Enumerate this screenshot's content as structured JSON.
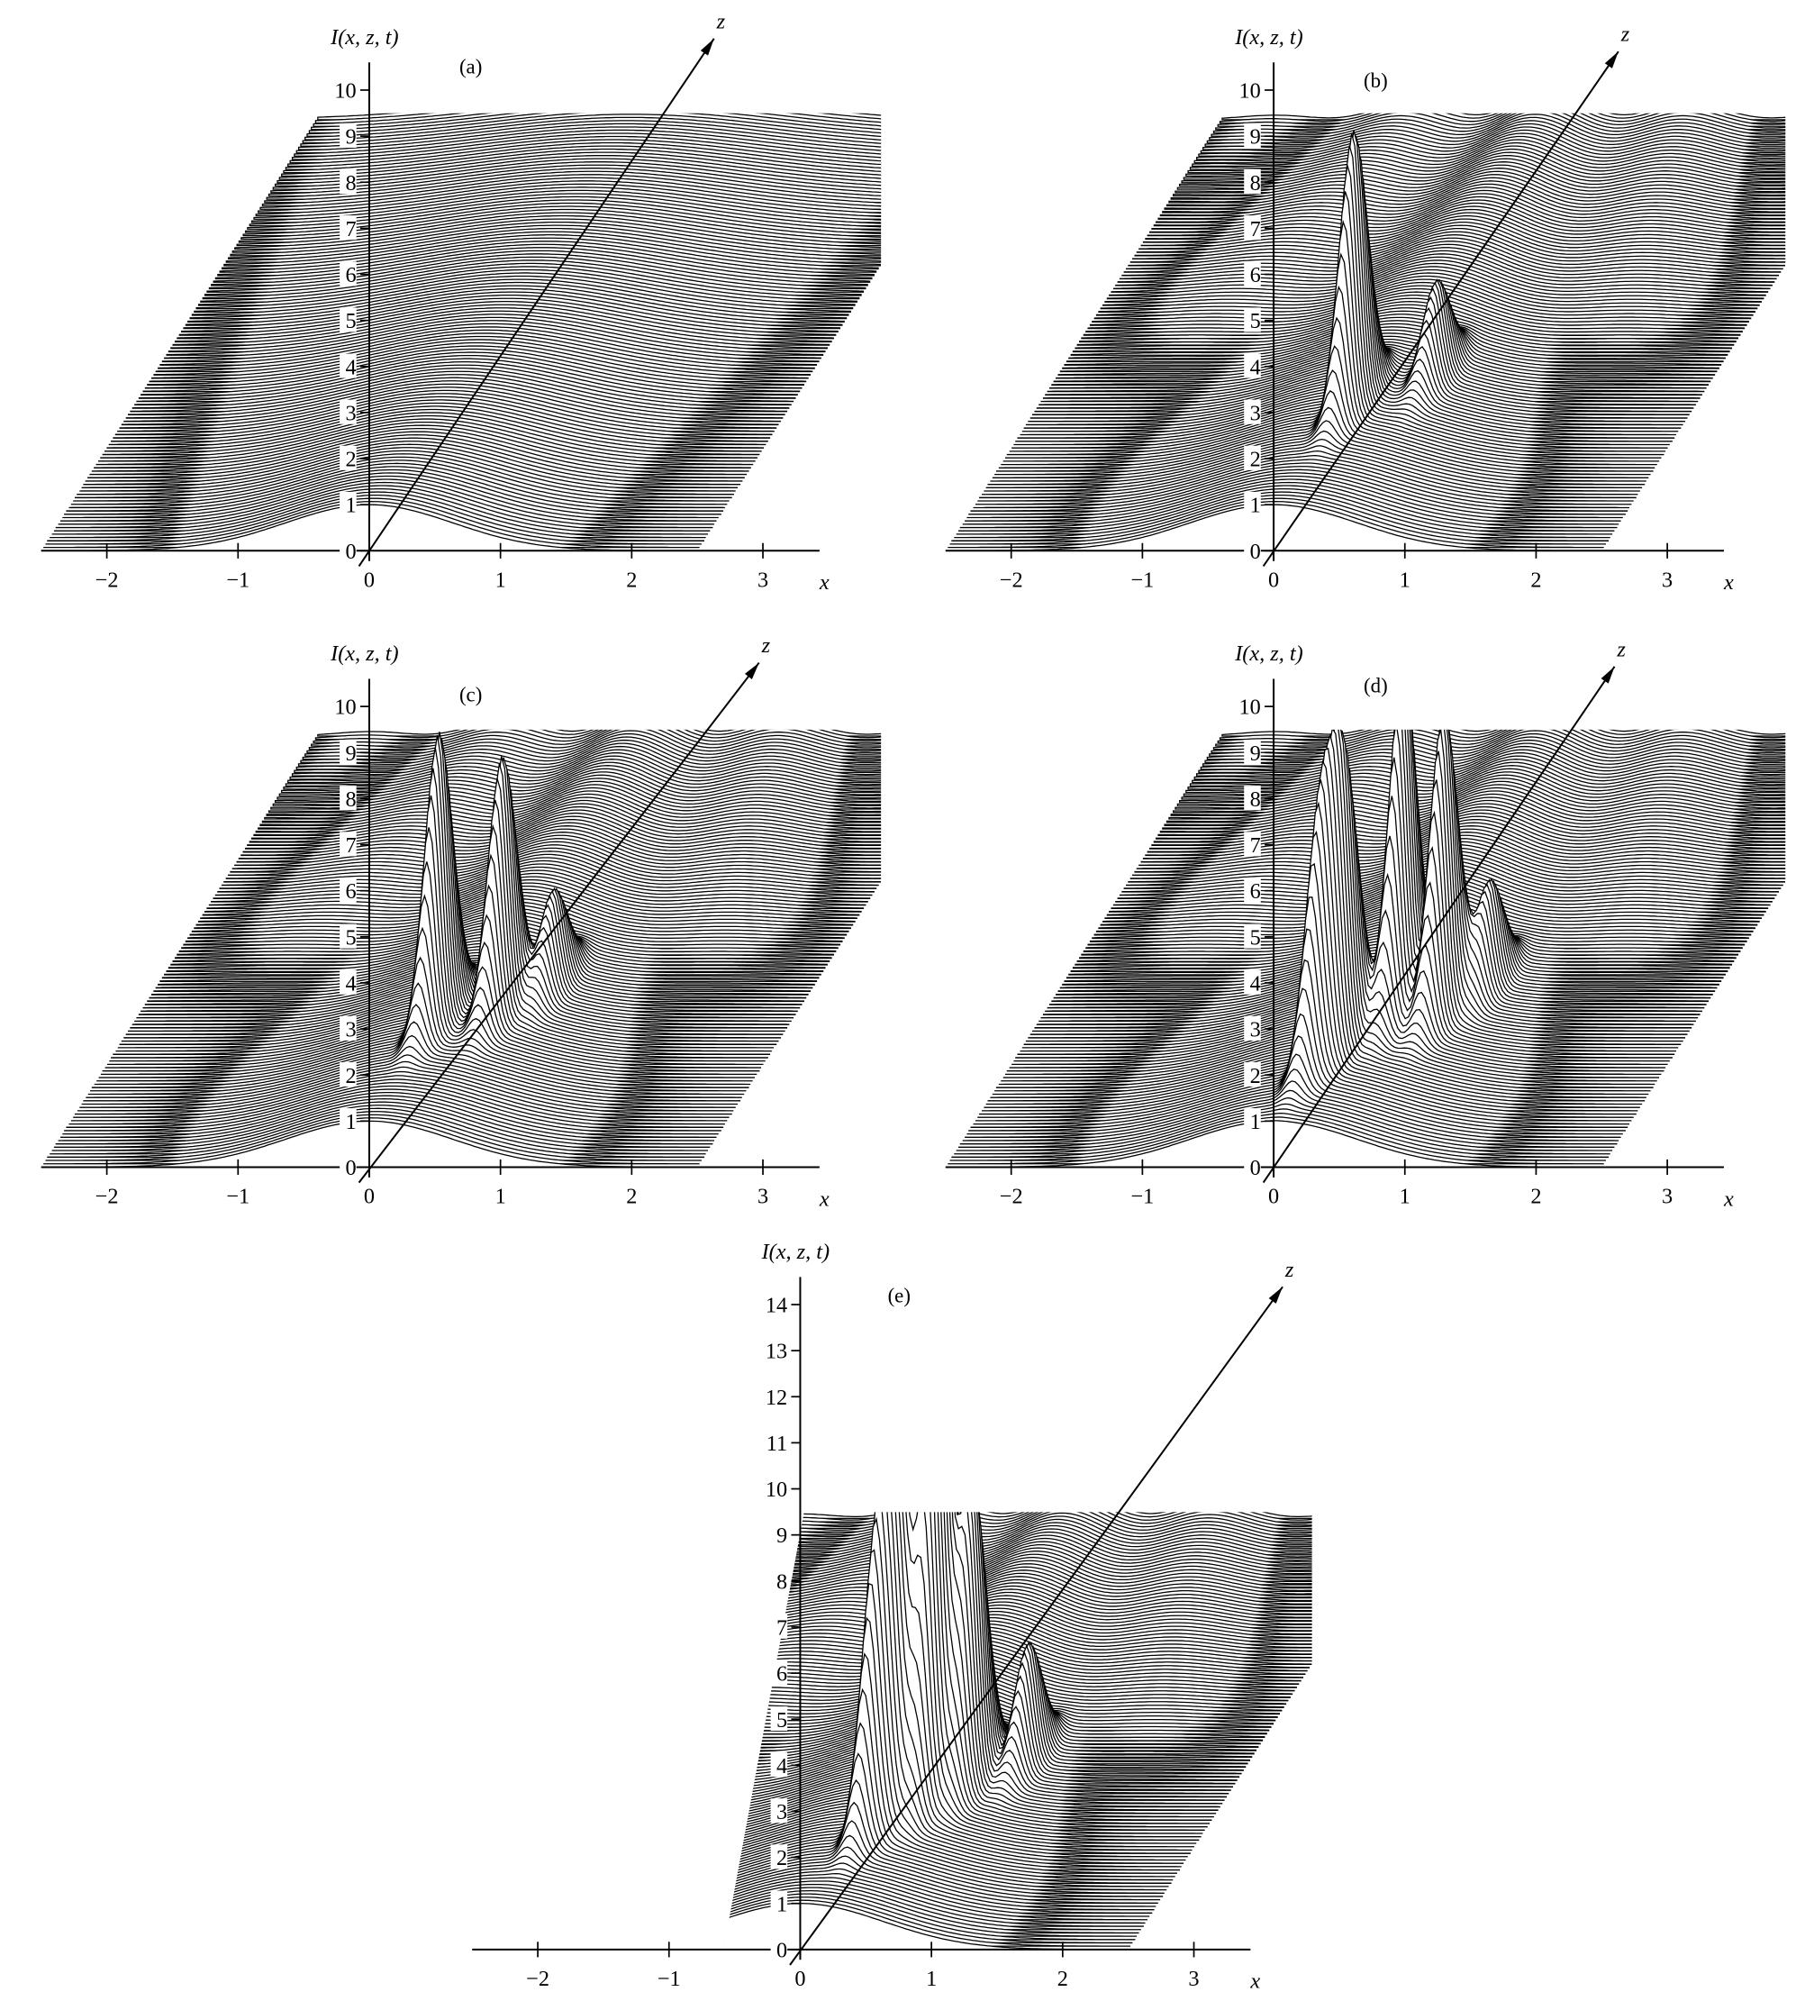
{
  "colors": {
    "line": "#000000",
    "background": "#ffffff"
  },
  "chart_data": [
    {
      "panel": "(a)",
      "type": "line",
      "ylabel": "I(x, z, t)",
      "xlabel": "x",
      "zlabel": "z",
      "xticks": [
        -2,
        -1,
        0,
        1,
        2,
        3
      ],
      "yticks": [
        0,
        1,
        2,
        3,
        4,
        5,
        6,
        7,
        8,
        9,
        10
      ],
      "xlim": [
        -2.5,
        3.5
      ],
      "ylim": [
        0,
        10.5
      ],
      "grid": false,
      "peaks": []
    },
    {
      "panel": "(b)",
      "type": "line",
      "ylabel": "I(x, z, t)",
      "xlabel": "x",
      "zlabel": "z",
      "xticks": [
        -2,
        -1,
        0,
        1,
        2,
        3
      ],
      "yticks": [
        0,
        1,
        2,
        3,
        4,
        5,
        6,
        7,
        8,
        9,
        10
      ],
      "xlim": [
        -2.5,
        3.5
      ],
      "ylim": [
        0,
        10.5
      ],
      "grid": false,
      "peaks": [
        {
          "x": 0.08,
          "z": 0.25,
          "I": 5.9
        },
        {
          "x": 0.5,
          "z": 0.35,
          "I": 2.0
        }
      ]
    },
    {
      "panel": "(c)",
      "type": "line",
      "ylabel": "I(x, z, t)",
      "xlabel": "x",
      "zlabel": "z",
      "xticks": [
        -2,
        -1,
        0,
        1,
        2,
        3
      ],
      "yticks": [
        0,
        1,
        2,
        3,
        4,
        5,
        6,
        7,
        8,
        9,
        10
      ],
      "xlim": [
        -2.5,
        3.5
      ],
      "ylim": [
        0,
        10.5
      ],
      "grid": false,
      "peaks": [
        {
          "x": 0.0,
          "z": 0.25,
          "I": 6.2
        },
        {
          "x": 0.38,
          "z": 0.3,
          "I": 5.4
        },
        {
          "x": 0.6,
          "z": 0.38,
          "I": 2.0
        }
      ]
    },
    {
      "panel": "(d)",
      "type": "line",
      "ylabel": "I(x, z, t)",
      "xlabel": "x",
      "zlabel": "z",
      "xticks": [
        -2,
        -1,
        0,
        1,
        2,
        3
      ],
      "yticks": [
        0,
        1,
        2,
        3,
        4,
        5,
        6,
        7,
        8,
        9,
        10
      ],
      "xlim": [
        -2.5,
        3.5
      ],
      "ylim": [
        0,
        10.5
      ],
      "grid": false,
      "peaks": [
        {
          "x": 0.35,
          "z": 0.3,
          "I": 7.3
        },
        {
          "x": 0.62,
          "z": 0.32,
          "I": 6.4
        },
        {
          "x": 0.12,
          "z": 0.2,
          "I": 5.6
        },
        {
          "x": 0.03,
          "z": 0.15,
          "I": 5.0
        },
        {
          "x": 0.8,
          "z": 0.4,
          "I": 2.2
        }
      ]
    },
    {
      "panel": "(e)",
      "type": "line",
      "ylabel": "I(x, z, t)",
      "xlabel": "x",
      "zlabel": "z",
      "xticks": [
        -2,
        -1,
        0,
        1,
        2,
        3
      ],
      "yticks": [
        0,
        1,
        2,
        3,
        4,
        5,
        6,
        7,
        8,
        9,
        10,
        11,
        12,
        13,
        14
      ],
      "xlim": [
        -2.5,
        3.5
      ],
      "ylim": [
        0,
        14.5
      ],
      "grid": false,
      "peaks": [
        {
          "x": 0.4,
          "z": 0.3,
          "I": 11.6
        },
        {
          "x": 0.57,
          "z": 0.35,
          "I": 6.4
        },
        {
          "x": 0.24,
          "z": 0.25,
          "I": 6.6
        },
        {
          "x": 0.15,
          "z": 0.2,
          "I": 5.6
        },
        {
          "x": 0.85,
          "z": 0.42,
          "I": 2.5
        }
      ]
    }
  ]
}
